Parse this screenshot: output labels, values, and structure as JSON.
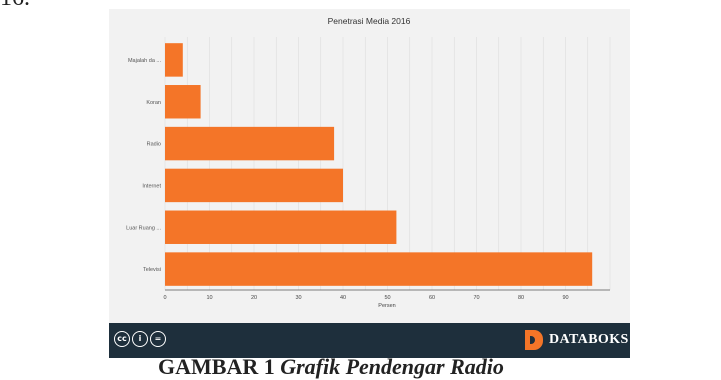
{
  "page": {
    "top_text": "16.",
    "caption_label": "GAMBAR 1",
    "caption_text": "Grafik Pendengar Radio"
  },
  "footer": {
    "license_icons": [
      "creative-commons-icon",
      "attribution-icon",
      "no-derivatives-icon"
    ],
    "brand": "DATABOKS",
    "brand_color": "#f47528",
    "background": "#1e2f3c"
  },
  "chart_data": {
    "type": "bar",
    "orientation": "horizontal",
    "title": "Penetrasi Media 2016",
    "xlabel": "Persen",
    "ylabel": "",
    "categories": [
      "Majalah da ...",
      "Koran",
      "Radio",
      "Internet",
      "Luar Ruang ...",
      "Televisi"
    ],
    "values": [
      4,
      8,
      38,
      40,
      52,
      96
    ],
    "xlim": [
      0,
      100
    ],
    "xticks": [
      0,
      10,
      20,
      30,
      40,
      50,
      60,
      70,
      80,
      90
    ],
    "grid": true,
    "bar_color": "#f47528",
    "background": "#f2f2f2"
  }
}
